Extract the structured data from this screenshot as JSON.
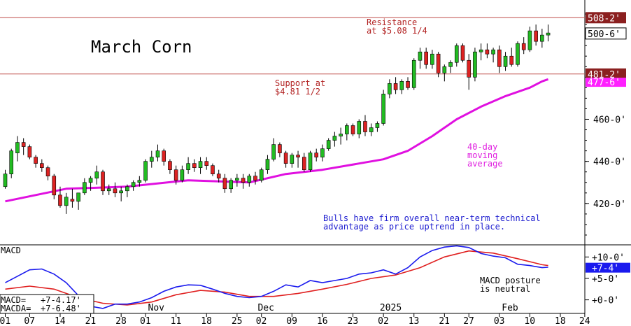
{
  "chart_data": {
    "type": "candlestick",
    "title": "March Corn",
    "price_axis": {
      "ylim": [
        402,
        514
      ],
      "ticks": [
        {
          "value": 420,
          "label": "420-0'"
        },
        {
          "value": 440,
          "label": "440-0'"
        },
        {
          "value": 460,
          "label": "460-0'"
        }
      ]
    },
    "date_ticks": [
      {
        "idx": 0,
        "label": "01"
      },
      {
        "idx": 4,
        "label": "07"
      },
      {
        "idx": 9,
        "label": "14"
      },
      {
        "idx": 14,
        "label": "21"
      },
      {
        "idx": 19,
        "label": "28"
      },
      {
        "idx": 23,
        "label": "01"
      },
      {
        "idx": 28,
        "label": "11"
      },
      {
        "idx": 33,
        "label": "18"
      },
      {
        "idx": 38,
        "label": "25"
      },
      {
        "idx": 42,
        "label": "02"
      },
      {
        "idx": 47,
        "label": "09"
      },
      {
        "idx": 52,
        "label": "16"
      },
      {
        "idx": 57,
        "label": "23"
      },
      {
        "idx": 62,
        "label": "02"
      },
      {
        "idx": 67,
        "label": "13"
      },
      {
        "idx": 72,
        "label": "21"
      },
      {
        "idx": 76,
        "label": "27"
      },
      {
        "idx": 81,
        "label": "03"
      },
      {
        "idx": 86,
        "label": "10"
      },
      {
        "idx": 91,
        "label": "18"
      },
      {
        "idx": 95,
        "label": "24"
      }
    ],
    "month_labels": [
      {
        "idx": 25,
        "label": "Nov"
      },
      {
        "idx": 43,
        "label": "Dec"
      },
      {
        "idx": 63,
        "label": "2025"
      },
      {
        "idx": 83,
        "label": "Feb"
      }
    ],
    "candles": [
      [
        428,
        436,
        427,
        434
      ],
      [
        434,
        446,
        432,
        445
      ],
      [
        444,
        452,
        440,
        449
      ],
      [
        449,
        451,
        443,
        447
      ],
      [
        447,
        448,
        441,
        442
      ],
      [
        442,
        443,
        437,
        439
      ],
      [
        439,
        441,
        435,
        437
      ],
      [
        437,
        438,
        431,
        433
      ],
      [
        433,
        434,
        422,
        424
      ],
      [
        424,
        428,
        418,
        419
      ],
      [
        419,
        425,
        415,
        423
      ],
      [
        422,
        427,
        418,
        421
      ],
      [
        421,
        425,
        417,
        425
      ],
      [
        425,
        432,
        424,
        430
      ],
      [
        430,
        433,
        426,
        432
      ],
      [
        432,
        438,
        429,
        435
      ],
      [
        435,
        436,
        424,
        426
      ],
      [
        426,
        429,
        424,
        427
      ],
      [
        427,
        430,
        423,
        425
      ],
      [
        425,
        428,
        421,
        426
      ],
      [
        426,
        429,
        423,
        428
      ],
      [
        428,
        431,
        426,
        430
      ],
      [
        430,
        433,
        428,
        431
      ],
      [
        431,
        441,
        430,
        440
      ],
      [
        440,
        445,
        437,
        442
      ],
      [
        442,
        448,
        440,
        445
      ],
      [
        445,
        446,
        438,
        440
      ],
      [
        440,
        441,
        434,
        436
      ],
      [
        436,
        438,
        429,
        431
      ],
      [
        431,
        438,
        430,
        436
      ],
      [
        436,
        442,
        434,
        439
      ],
      [
        439,
        441,
        435,
        437
      ],
      [
        437,
        442,
        434,
        440
      ],
      [
        440,
        442,
        436,
        438
      ],
      [
        438,
        439,
        433,
        434
      ],
      [
        434,
        436,
        430,
        432
      ],
      [
        432,
        434,
        425,
        427
      ],
      [
        427,
        432,
        425,
        431
      ],
      [
        431,
        434,
        428,
        432
      ],
      [
        432,
        434,
        427,
        430
      ],
      [
        430,
        434,
        428,
        433
      ],
      [
        433,
        435,
        429,
        431
      ],
      [
        431,
        437,
        430,
        436
      ],
      [
        436,
        443,
        434,
        441
      ],
      [
        441,
        451,
        440,
        448
      ],
      [
        448,
        449,
        442,
        444
      ],
      [
        444,
        445,
        437,
        439
      ],
      [
        439,
        444,
        437,
        443
      ],
      [
        443,
        445,
        437,
        442
      ],
      [
        442,
        444,
        435,
        436
      ],
      [
        436,
        445,
        435,
        444
      ],
      [
        444,
        446,
        440,
        442
      ],
      [
        442,
        448,
        440,
        446
      ],
      [
        446,
        451,
        445,
        450
      ],
      [
        450,
        454,
        447,
        452
      ],
      [
        452,
        456,
        448,
        453
      ],
      [
        453,
        458,
        450,
        457
      ],
      [
        457,
        458,
        452,
        453
      ],
      [
        453,
        460,
        451,
        459
      ],
      [
        459,
        462,
        452,
        454
      ],
      [
        454,
        458,
        452,
        456
      ],
      [
        456,
        459,
        454,
        458
      ],
      [
        458,
        474,
        457,
        472
      ],
      [
        472,
        479,
        470,
        477
      ],
      [
        477,
        480,
        472,
        474
      ],
      [
        474,
        479,
        472,
        478
      ],
      [
        478,
        480,
        474,
        475
      ],
      [
        475,
        489,
        474,
        488
      ],
      [
        488,
        494,
        484,
        492
      ],
      [
        492,
        494,
        484,
        486
      ],
      [
        486,
        493,
        484,
        491
      ],
      [
        491,
        492,
        480,
        482
      ],
      [
        482,
        486,
        478,
        485
      ],
      [
        485,
        488,
        482,
        487
      ],
      [
        487,
        496,
        485,
        495
      ],
      [
        495,
        496,
        487,
        488
      ],
      [
        488,
        491,
        474,
        480
      ],
      [
        480,
        494,
        478,
        492
      ],
      [
        492,
        496,
        488,
        493
      ],
      [
        493,
        496,
        489,
        491
      ],
      [
        491,
        494,
        487,
        493
      ],
      [
        493,
        495,
        482,
        485
      ],
      [
        485,
        492,
        483,
        490
      ],
      [
        490,
        494,
        485,
        486
      ],
      [
        486,
        497,
        485,
        496
      ],
      [
        496,
        499,
        491,
        493
      ],
      [
        493,
        504,
        492,
        502
      ],
      [
        502,
        505,
        495,
        497
      ],
      [
        497,
        503,
        494,
        500
      ],
      [
        500,
        505,
        497,
        501
      ]
    ],
    "ma40": [
      [
        0,
        421
      ],
      [
        10,
        427
      ],
      [
        20,
        428
      ],
      [
        30,
        431
      ],
      [
        40,
        430
      ],
      [
        46,
        434
      ],
      [
        52,
        436
      ],
      [
        58,
        439
      ],
      [
        62,
        441
      ],
      [
        66,
        445
      ],
      [
        70,
        452
      ],
      [
        74,
        460
      ],
      [
        78,
        466
      ],
      [
        82,
        471
      ],
      [
        86,
        475
      ],
      [
        88,
        478
      ],
      [
        89,
        479
      ]
    ],
    "support": {
      "value": 481.5,
      "label": "481-2'",
      "annotation_line1": "Support at",
      "annotation_line2": "$4.81 1/2"
    },
    "resistance": {
      "value": 508.25,
      "label": "508-2'",
      "annotation_line1": "Resistance",
      "annotation_line2": "at $5.08 1/4"
    },
    "last_price_label": {
      "value": 500.75,
      "label": "500-6'"
    },
    "ma_last_label": {
      "value": 477.75,
      "label": "477-6'"
    },
    "ma_annotation": {
      "line1": "40-day",
      "line2": "moving",
      "line3": "average"
    },
    "comment": {
      "line1": "Bulls have firm overall near-term technical",
      "line2": "advantage as price uptrend in place."
    },
    "macd": {
      "title": "MACD",
      "ylim": [
        -3,
        12.5
      ],
      "ticks": [
        {
          "value": 10,
          "label": "+10-0'"
        },
        {
          "value": 5,
          "label": "+5-0'"
        },
        {
          "value": 0,
          "label": "+0-0'"
        }
      ],
      "current_label": "+7-4'",
      "current_value": 7.5,
      "readout_macd_label": "MACD=",
      "readout_macd_value": "+7-4.17'",
      "readout_macda_label": "MACDA=",
      "readout_macda_value": "+7-6.48'",
      "annotation_line1": "MACD posture",
      "annotation_line2": "is neutral",
      "macd_line": [
        [
          0,
          4
        ],
        [
          2,
          5.5
        ],
        [
          4,
          7
        ],
        [
          6,
          7.2
        ],
        [
          8,
          6
        ],
        [
          10,
          4
        ],
        [
          12,
          1
        ],
        [
          14,
          -1.5
        ],
        [
          16,
          -2
        ],
        [
          18,
          -1
        ],
        [
          20,
          -1
        ],
        [
          22,
          -0.5
        ],
        [
          24,
          0.5
        ],
        [
          26,
          2
        ],
        [
          28,
          3
        ],
        [
          30,
          3.5
        ],
        [
          32,
          3.4
        ],
        [
          34,
          2.5
        ],
        [
          36,
          1.5
        ],
        [
          38,
          0.8
        ],
        [
          40,
          0.5
        ],
        [
          42,
          0.8
        ],
        [
          44,
          2
        ],
        [
          46,
          3.5
        ],
        [
          48,
          3
        ],
        [
          50,
          4.5
        ],
        [
          52,
          4
        ],
        [
          54,
          4.5
        ],
        [
          56,
          5
        ],
        [
          58,
          6
        ],
        [
          60,
          6.3
        ],
        [
          62,
          7
        ],
        [
          64,
          6
        ],
        [
          66,
          7.5
        ],
        [
          68,
          10
        ],
        [
          70,
          11.5
        ],
        [
          72,
          12.3
        ],
        [
          74,
          12.6
        ],
        [
          76,
          12.2
        ],
        [
          78,
          10.8
        ],
        [
          80,
          10.2
        ],
        [
          82,
          9.8
        ],
        [
          84,
          8.3
        ],
        [
          86,
          8
        ],
        [
          88,
          7.5
        ],
        [
          89,
          7.6
        ]
      ],
      "signal_line": [
        [
          0,
          2.5
        ],
        [
          4,
          3.2
        ],
        [
          8,
          2.5
        ],
        [
          12,
          0.5
        ],
        [
          16,
          -0.8
        ],
        [
          20,
          -1.2
        ],
        [
          24,
          -0.5
        ],
        [
          28,
          1.2
        ],
        [
          32,
          2.2
        ],
        [
          36,
          1.8
        ],
        [
          40,
          0.8
        ],
        [
          44,
          0.8
        ],
        [
          48,
          1.5
        ],
        [
          52,
          2.5
        ],
        [
          56,
          3.6
        ],
        [
          60,
          5
        ],
        [
          64,
          5.8
        ],
        [
          68,
          7.5
        ],
        [
          72,
          10
        ],
        [
          76,
          11.4
        ],
        [
          80,
          10.9
        ],
        [
          84,
          9.6
        ],
        [
          88,
          8.2
        ],
        [
          89,
          8
        ]
      ]
    }
  }
}
